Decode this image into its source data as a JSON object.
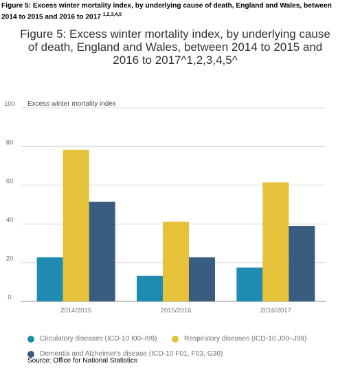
{
  "figure_label": {
    "text": "Figure 5: Excess winter mortality index, by underlying cause of death, England and Wales, between 2014 to 2015 and 2016 to 2017",
    "superscript": "1,2,3,4,5"
  },
  "source": "Source: Office for National Statistics",
  "colors": {
    "circulatory": "#1f8bb3",
    "respiratory": "#e5c23a",
    "dementia": "#385d80",
    "grid": "#d9d9d9"
  },
  "chart_data": {
    "type": "bar",
    "title": "Figure 5: Excess winter mortality index, by underlying cause of death, England and Wales, between 2014 to 2015 and 2016 to 2017^1,2,3,4,5^",
    "ylabel": "Excess winter mortality index",
    "xlabel": "",
    "categories": [
      "2014/2015",
      "2015/2016",
      "2016/2017"
    ],
    "ylim": [
      0,
      100
    ],
    "yticks": [
      0,
      20,
      40,
      60,
      80,
      100
    ],
    "grid": true,
    "legend_position": "bottom",
    "series": [
      {
        "name": "Circulatory diseases (ICD-10 I00–I99)",
        "color": "#1f8bb3",
        "values": [
          22.8,
          13.2,
          17.5
        ]
      },
      {
        "name": "Respiratory diseases (ICD-10 J00–J99)",
        "color": "#e5c23a",
        "values": [
          78.3,
          41.2,
          61.5
        ]
      },
      {
        "name": "Dementia and Alzheimer's disease (ICD-10 F01, F03, G30)",
        "color": "#385d80",
        "values": [
          51.5,
          22.8,
          39.0
        ]
      }
    ]
  }
}
